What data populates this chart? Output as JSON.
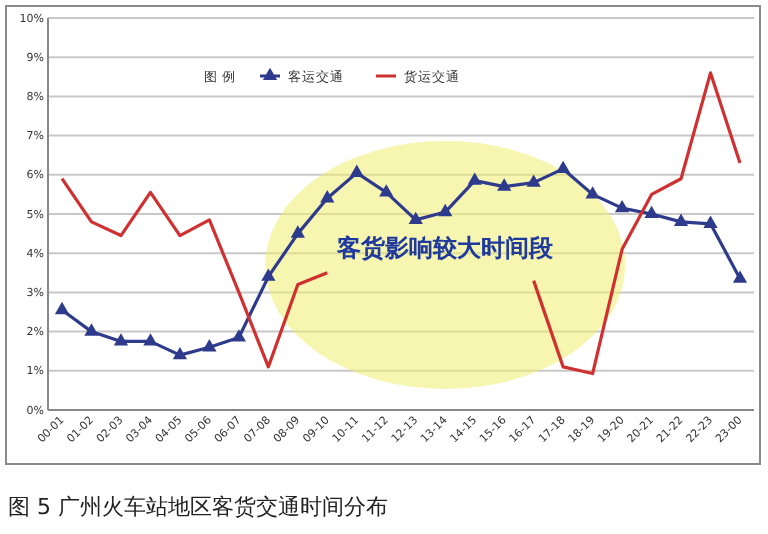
{
  "chart_data": {
    "type": "line",
    "title": "图 5 广州火车站地区客货交通时间分布",
    "legend_title": "图 例",
    "legend": "top",
    "categories": [
      "00-01",
      "01-02",
      "02-03",
      "03-04",
      "04-05",
      "05-06",
      "06-07",
      "07-08",
      "08-09",
      "09-10",
      "10-11",
      "11-12",
      "12-13",
      "13-14",
      "14-15",
      "15-16",
      "16-17",
      "17-18",
      "18-19",
      "19-20",
      "20-21",
      "21-22",
      "22-23",
      "23-00"
    ],
    "series": [
      {
        "name": "客运交通",
        "color": "#2e3a8c",
        "marker": "triangle",
        "values": [
          2.55,
          2.0,
          1.75,
          1.75,
          1.4,
          1.6,
          1.85,
          3.4,
          4.5,
          5.4,
          6.05,
          5.55,
          4.85,
          5.05,
          5.85,
          5.7,
          5.8,
          6.15,
          5.5,
          5.15,
          5.0,
          4.8,
          4.75,
          3.35
        ]
      },
      {
        "name": "货运交通",
        "color": "#d03030",
        "marker": "none",
        "values": [
          5.9,
          4.8,
          4.45,
          5.55,
          4.45,
          4.85,
          3.0,
          1.1,
          3.2,
          3.5,
          null,
          null,
          null,
          null,
          null,
          null,
          3.3,
          1.1,
          0.93,
          4.1,
          5.5,
          5.9,
          8.6,
          6.3
        ]
      }
    ],
    "ylim": [
      0,
      10
    ],
    "yticks": [
      {
        "value": 0,
        "label": "0%"
      },
      {
        "value": 1,
        "label": "1%"
      },
      {
        "value": 2,
        "label": "2%"
      },
      {
        "value": 3,
        "label": "3%"
      },
      {
        "value": 4,
        "label": "4%"
      },
      {
        "value": 5,
        "label": "5%"
      },
      {
        "value": 6,
        "label": "6%"
      },
      {
        "value": 7,
        "label": "7%"
      },
      {
        "value": 8,
        "label": "8%"
      },
      {
        "value": 9,
        "label": "9%"
      },
      {
        "value": 10,
        "label": "10%"
      }
    ],
    "grid": "y",
    "line_style": "solid",
    "annotations": [
      "客货影响较大时间段"
    ]
  }
}
